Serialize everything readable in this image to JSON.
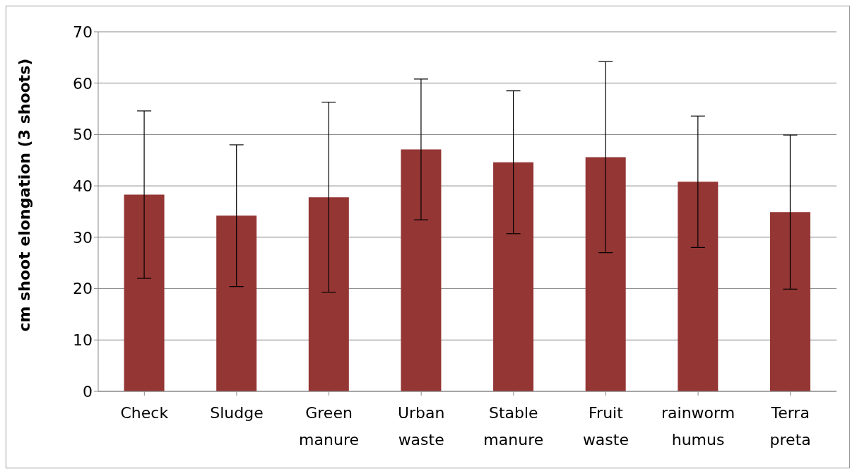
{
  "chart_data": {
    "type": "bar",
    "ylabel": "cm shoot elongation (3 shoots)",
    "categories": [
      "Check",
      "Sludge",
      "Green manure",
      "Urban waste",
      "Stable manure",
      "Fruit waste",
      "rainworm humus",
      "Terra preta"
    ],
    "values": [
      38.3,
      34.2,
      37.8,
      47.1,
      44.6,
      45.6,
      40.8,
      34.9
    ],
    "errors": [
      16.3,
      13.8,
      18.5,
      13.7,
      13.9,
      18.6,
      12.8,
      15
    ],
    "color": "#943634",
    "ylim": [
      0,
      70
    ],
    "yticks": [
      0,
      10,
      20,
      30,
      40,
      50,
      60,
      70
    ],
    "grid": "y"
  }
}
